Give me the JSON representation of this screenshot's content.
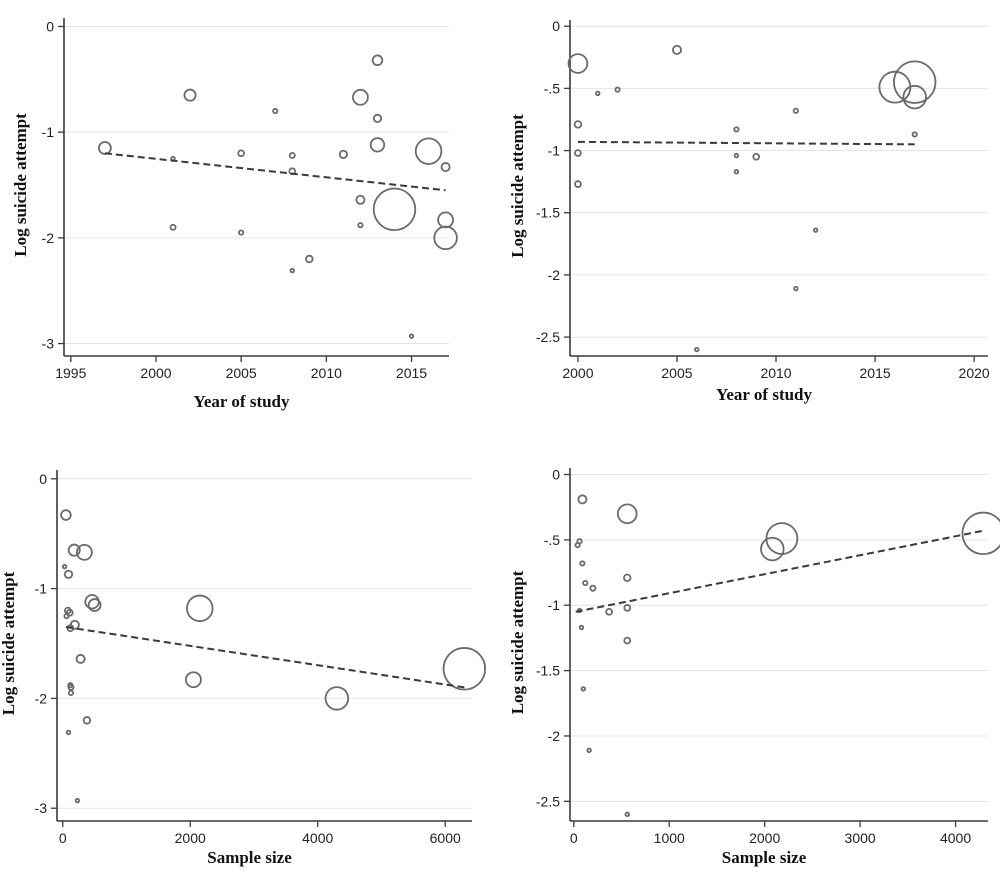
{
  "chart_data": [
    {
      "type": "scatter",
      "xlabel": "Year of study",
      "ylabel": "Log suicide attempt",
      "xlim": [
        1994.6,
        2017.2
      ],
      "ylim": [
        -3.08,
        0.08
      ],
      "xticks": [
        1995,
        2000,
        2005,
        2010,
        2015
      ],
      "yticks": [
        0,
        -1,
        -2,
        -3
      ],
      "grid": true,
      "points": [
        {
          "x": 1997,
          "y": -1.15,
          "weight": 0.22
        },
        {
          "x": 2001,
          "y": -1.25,
          "weight": 0.0
        },
        {
          "x": 2001,
          "y": -1.9,
          "weight": 0.04
        },
        {
          "x": 2002,
          "y": -0.65,
          "weight": 0.2
        },
        {
          "x": 2005,
          "y": -1.2,
          "weight": 0.06
        },
        {
          "x": 2005,
          "y": -1.95,
          "weight": 0.02
        },
        {
          "x": 2007,
          "y": -0.8,
          "weight": 0.02
        },
        {
          "x": 2008,
          "y": -1.22,
          "weight": 0.04
        },
        {
          "x": 2008,
          "y": -1.37,
          "weight": 0.06
        },
        {
          "x": 2008,
          "y": -2.31,
          "weight": 0.0
        },
        {
          "x": 2009,
          "y": -2.2,
          "weight": 0.08
        },
        {
          "x": 2011,
          "y": -1.21,
          "weight": 0.1
        },
        {
          "x": 2012,
          "y": -0.67,
          "weight": 0.3
        },
        {
          "x": 2012,
          "y": -1.64,
          "weight": 0.12
        },
        {
          "x": 2012,
          "y": -1.88,
          "weight": 0.02
        },
        {
          "x": 2013,
          "y": -0.32,
          "weight": 0.16
        },
        {
          "x": 2013,
          "y": -0.87,
          "weight": 0.1
        },
        {
          "x": 2013,
          "y": -1.12,
          "weight": 0.26
        },
        {
          "x": 2014,
          "y": -1.73,
          "weight": 1.0
        },
        {
          "x": 2015,
          "y": -2.93,
          "weight": 0.0
        },
        {
          "x": 2016,
          "y": -1.18,
          "weight": 0.58
        },
        {
          "x": 2017,
          "y": -1.33,
          "weight": 0.12
        },
        {
          "x": 2017,
          "y": -1.83,
          "weight": 0.3
        },
        {
          "x": 2017,
          "y": -2.0,
          "weight": 0.5
        }
      ],
      "fit_line": [
        {
          "x": 1997,
          "y": -1.2
        },
        {
          "x": 2017,
          "y": -1.55
        }
      ]
    },
    {
      "type": "scatter",
      "xlabel": "Year of study",
      "ylabel": "Log suicide attempt",
      "xlim": [
        1999.6,
        2020.7
      ],
      "ylim": [
        -2.62,
        0.05
      ],
      "xticks": [
        2000,
        2005,
        2010,
        2015,
        2020
      ],
      "yticks": [
        0,
        -0.5,
        -1,
        -1.5,
        -2,
        -2.5
      ],
      "grid": true,
      "points": [
        {
          "x": 2000,
          "y": -0.3,
          "weight": 0.4
        },
        {
          "x": 2000,
          "y": -0.79,
          "weight": 0.08
        },
        {
          "x": 2000,
          "y": -1.02,
          "weight": 0.06
        },
        {
          "x": 2000,
          "y": -1.27,
          "weight": 0.06
        },
        {
          "x": 2001,
          "y": -0.54,
          "weight": 0.0
        },
        {
          "x": 2002,
          "y": -0.51,
          "weight": 0.02
        },
        {
          "x": 2005,
          "y": -0.19,
          "weight": 0.12
        },
        {
          "x": 2006,
          "y": -2.6,
          "weight": 0.0
        },
        {
          "x": 2008,
          "y": -0.83,
          "weight": 0.02
        },
        {
          "x": 2008,
          "y": -1.04,
          "weight": 0.0
        },
        {
          "x": 2008,
          "y": -1.17,
          "weight": 0.0
        },
        {
          "x": 2009,
          "y": -1.05,
          "weight": 0.06
        },
        {
          "x": 2011,
          "y": -0.68,
          "weight": 0.02
        },
        {
          "x": 2011,
          "y": -2.11,
          "weight": 0.0
        },
        {
          "x": 2012,
          "y": -1.64,
          "weight": 0.0
        },
        {
          "x": 2016,
          "y": -0.49,
          "weight": 0.72
        },
        {
          "x": 2017,
          "y": -0.45,
          "weight": 1.0
        },
        {
          "x": 2017,
          "y": -0.57,
          "weight": 0.5
        },
        {
          "x": 2017,
          "y": -0.87,
          "weight": 0.02
        }
      ],
      "fit_line": [
        {
          "x": 2000,
          "y": -0.93
        },
        {
          "x": 2017,
          "y": -0.95
        }
      ]
    },
    {
      "type": "scatter",
      "xlabel": "Sample size",
      "ylabel": "Log suicide attempt",
      "xlim": [
        -90,
        6420
      ],
      "ylim": [
        -3.08,
        0.08
      ],
      "xticks": [
        0,
        2000,
        4000,
        6000
      ],
      "yticks": [
        0,
        -1,
        -2,
        -3
      ],
      "grid": true,
      "points": [
        {
          "x": 50,
          "y": -0.33,
          "weight": 0.16
        },
        {
          "x": 30,
          "y": -0.8,
          "weight": 0.0
        },
        {
          "x": 90,
          "y": -0.87,
          "weight": 0.1
        },
        {
          "x": 180,
          "y": -0.65,
          "weight": 0.2
        },
        {
          "x": 340,
          "y": -0.67,
          "weight": 0.3
        },
        {
          "x": 80,
          "y": -1.2,
          "weight": 0.06
        },
        {
          "x": 60,
          "y": -1.25,
          "weight": 0.02
        },
        {
          "x": 110,
          "y": -1.22,
          "weight": 0.06
        },
        {
          "x": 120,
          "y": -1.36,
          "weight": 0.06
        },
        {
          "x": 190,
          "y": -1.33,
          "weight": 0.12
        },
        {
          "x": 460,
          "y": -1.12,
          "weight": 0.26
        },
        {
          "x": 500,
          "y": -1.15,
          "weight": 0.22
        },
        {
          "x": 280,
          "y": -1.64,
          "weight": 0.12
        },
        {
          "x": 120,
          "y": -1.88,
          "weight": 0.02
        },
        {
          "x": 130,
          "y": -1.9,
          "weight": 0.04
        },
        {
          "x": 130,
          "y": -1.95,
          "weight": 0.02
        },
        {
          "x": 90,
          "y": -2.31,
          "weight": 0.0
        },
        {
          "x": 380,
          "y": -2.2,
          "weight": 0.08
        },
        {
          "x": 230,
          "y": -2.93,
          "weight": 0.0
        },
        {
          "x": 2150,
          "y": -1.18,
          "weight": 0.58
        },
        {
          "x": 2050,
          "y": -1.83,
          "weight": 0.3
        },
        {
          "x": 4300,
          "y": -2.0,
          "weight": 0.5
        },
        {
          "x": 6300,
          "y": -1.73,
          "weight": 1.0
        }
      ],
      "fit_line": [
        {
          "x": 50,
          "y": -1.35
        },
        {
          "x": 6300,
          "y": -1.9
        }
      ]
    },
    {
      "type": "scatter",
      "xlabel": "Sample size",
      "ylabel": "Log suicide attempt",
      "xlim": [
        -40,
        4340
      ],
      "ylim": [
        -2.62,
        0.05
      ],
      "xticks": [
        0,
        1000,
        2000,
        3000,
        4000
      ],
      "yticks": [
        0,
        -0.5,
        -1,
        -1.5,
        -2,
        -2.5
      ],
      "grid": true,
      "points": [
        {
          "x": 90,
          "y": -0.19,
          "weight": 0.12
        },
        {
          "x": 40,
          "y": -0.54,
          "weight": 0.02
        },
        {
          "x": 60,
          "y": -0.51,
          "weight": 0.02
        },
        {
          "x": 90,
          "y": -0.68,
          "weight": 0.02
        },
        {
          "x": 120,
          "y": -0.83,
          "weight": 0.02
        },
        {
          "x": 200,
          "y": -0.87,
          "weight": 0.04
        },
        {
          "x": 60,
          "y": -1.04,
          "weight": 0.0
        },
        {
          "x": 80,
          "y": -1.17,
          "weight": 0.0
        },
        {
          "x": 370,
          "y": -1.05,
          "weight": 0.06
        },
        {
          "x": 560,
          "y": -0.3,
          "weight": 0.4
        },
        {
          "x": 560,
          "y": -0.79,
          "weight": 0.08
        },
        {
          "x": 560,
          "y": -1.02,
          "weight": 0.06
        },
        {
          "x": 560,
          "y": -1.27,
          "weight": 0.06
        },
        {
          "x": 100,
          "y": -1.64,
          "weight": 0.0
        },
        {
          "x": 160,
          "y": -2.11,
          "weight": 0.0
        },
        {
          "x": 560,
          "y": -2.6,
          "weight": 0.0
        },
        {
          "x": 2080,
          "y": -0.57,
          "weight": 0.5
        },
        {
          "x": 2180,
          "y": -0.49,
          "weight": 0.72
        },
        {
          "x": 4290,
          "y": -0.45,
          "weight": 1.0
        }
      ],
      "fit_line": [
        {
          "x": 20,
          "y": -1.05
        },
        {
          "x": 4290,
          "y": -0.43
        }
      ]
    }
  ]
}
